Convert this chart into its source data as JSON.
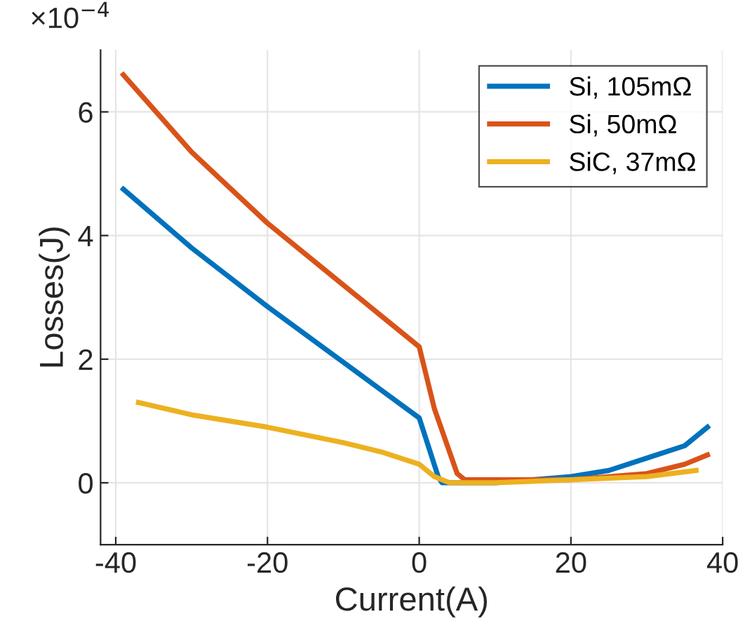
{
  "chart_data": {
    "type": "line",
    "xlabel": "Current(A)",
    "ylabel": "Losses(J)",
    "xlim": [
      -42,
      40
    ],
    "xticks": [
      -40,
      -20,
      0,
      20,
      40
    ],
    "ylim": [
      -1,
      7
    ],
    "yticks": [
      0,
      2,
      4,
      6
    ],
    "annotations": [
      "×10$^{−4}$"
    ],
    "grid": true,
    "legend": "top right",
    "line_style": "solid",
    "marker": "none",
    "series": [
      {
        "name": "Si, 105mΩ",
        "color": "#0072bd",
        "x": [
          -39,
          -30,
          -20,
          -10,
          -5,
          0,
          2.5,
          3,
          10,
          20,
          25,
          30,
          35,
          38
        ],
        "values": [
          4.75,
          3.8,
          2.85,
          1.95,
          1.5,
          1.05,
          0.1,
          0,
          0,
          0.1,
          0.2,
          0.4,
          0.6,
          0.9
        ]
      },
      {
        "name": "Si, 50mΩ",
        "color": "#d95319",
        "x": [
          -39,
          -30,
          -20,
          -10,
          -5,
          0,
          2,
          5,
          6,
          20,
          30,
          35,
          38
        ],
        "values": [
          6.6,
          5.35,
          4.2,
          3.2,
          2.7,
          2.2,
          1.2,
          0.15,
          0.05,
          0.05,
          0.15,
          0.3,
          0.45
        ]
      },
      {
        "name": "SiC, 37mΩ",
        "color": "#edb120",
        "x": [
          -37,
          -30,
          -20,
          -10,
          -5,
          0,
          2,
          4,
          10,
          20,
          30,
          36.5
        ],
        "values": [
          1.3,
          1.1,
          0.9,
          0.65,
          0.5,
          0.3,
          0.1,
          0,
          0,
          0.05,
          0.1,
          0.2
        ]
      }
    ]
  }
}
